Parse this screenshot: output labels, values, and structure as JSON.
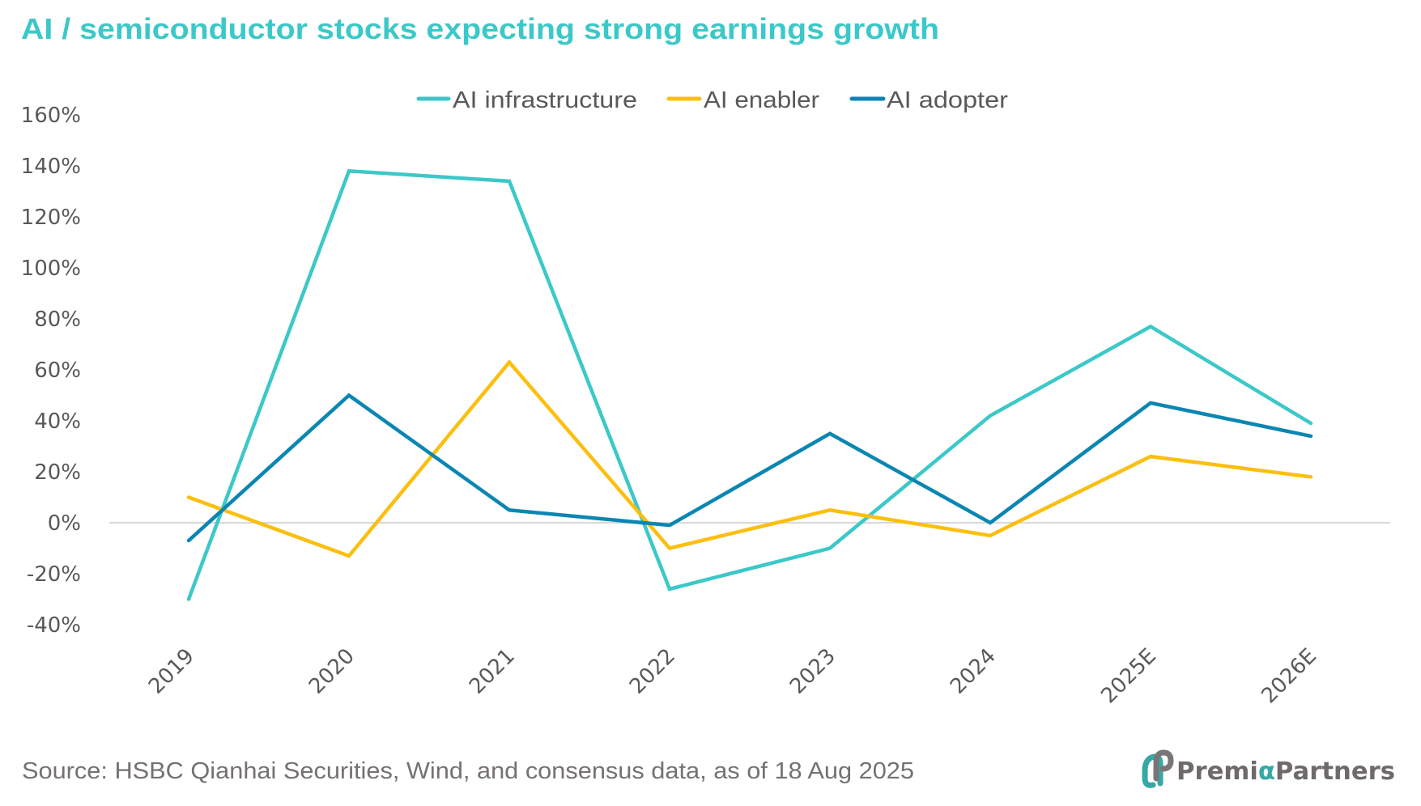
{
  "chart_data": {
    "type": "line",
    "title": "AI / semiconductor stocks expecting strong earnings growth",
    "xlabel": "",
    "ylabel": "",
    "categories": [
      "2019",
      "2020",
      "2021",
      "2022",
      "2023",
      "2024",
      "2025E",
      "2026E"
    ],
    "ylim": [
      -40,
      160
    ],
    "ytick_step": 20,
    "y_ticks": [
      "160%",
      "140%",
      "120%",
      "100%",
      "80%",
      "60%",
      "40%",
      "20%",
      "0%",
      "-20%",
      "-40%"
    ],
    "y_format": "percent",
    "grid": false,
    "zero_line": true,
    "legend_position": "top-center",
    "series": [
      {
        "name": "AI infrastructure",
        "color": "#3cc8c8",
        "values": [
          -30,
          138,
          134,
          -26,
          -10,
          42,
          77,
          39
        ]
      },
      {
        "name": "AI enabler",
        "color": "#fbbf0f",
        "values": [
          10,
          -13,
          63,
          -10,
          5,
          -5,
          26,
          18
        ]
      },
      {
        "name": "AI adopter",
        "color": "#0b86b3",
        "values": [
          -7,
          50,
          5,
          -1,
          35,
          0,
          47,
          34
        ]
      }
    ]
  },
  "footer": {
    "source": "Source: HSBC Qianhai Securities, Wind, and consensus data, as of 18 Aug 2025"
  },
  "logo": {
    "text_before": "Premi",
    "alpha": "α",
    "text_after": "Partners",
    "icon": "premia-link-icon",
    "brand_teal": "#35a9a6",
    "brand_gray": "#6e6a6b"
  }
}
